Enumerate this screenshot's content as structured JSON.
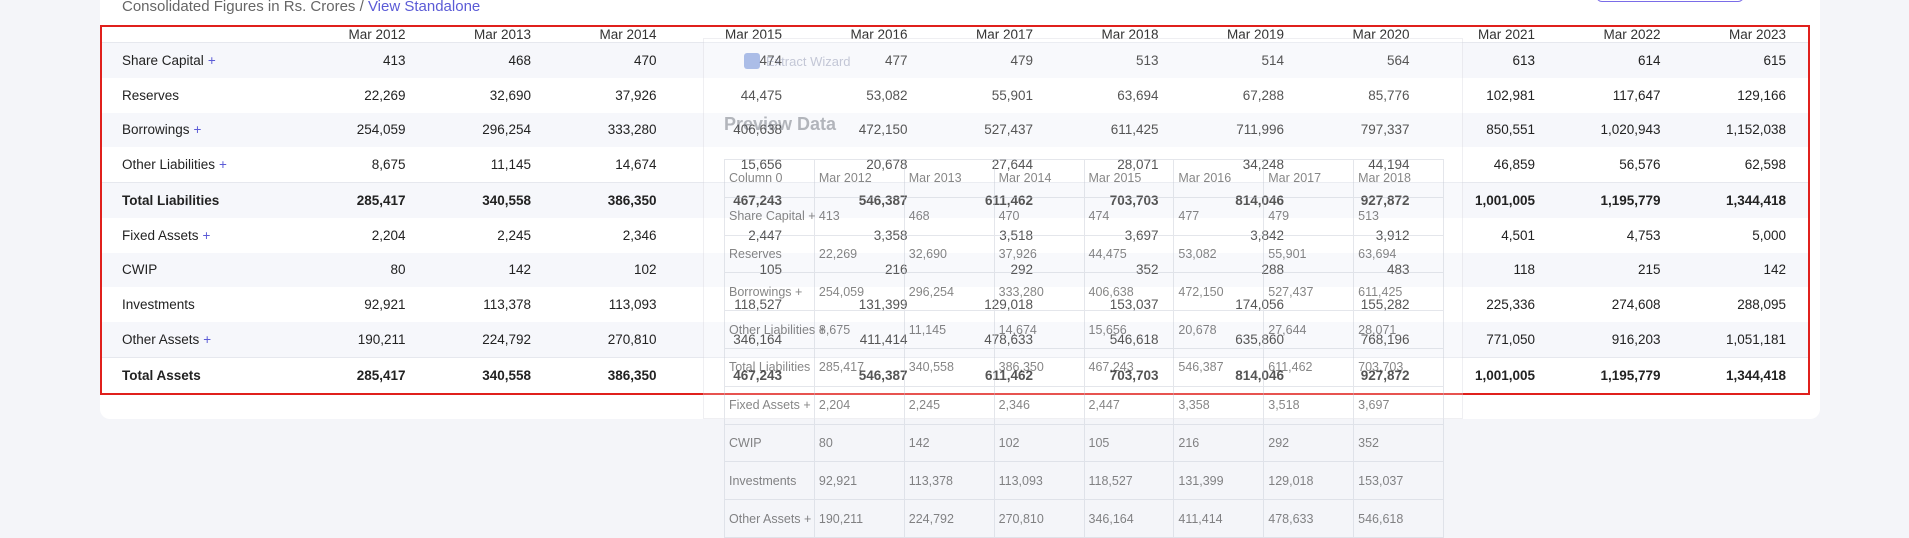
{
  "header": {
    "subtitle": "Consolidated Figures in Rs. Crores / ",
    "link": "View Standalone"
  },
  "table": {
    "columns": [
      "Mar 2012",
      "Mar 2013",
      "Mar 2014",
      "Mar 2015",
      "Mar 2016",
      "Mar 2017",
      "Mar 2018",
      "Mar 2019",
      "Mar 2020",
      "Mar 2021",
      "Mar 2022",
      "Mar 2023"
    ],
    "rows": [
      {
        "label": "Share Capital",
        "plus": "+",
        "values": [
          "413",
          "468",
          "470",
          "474",
          "477",
          "479",
          "513",
          "514",
          "564",
          "613",
          "614",
          "615"
        ]
      },
      {
        "label": "Reserves",
        "plus": "",
        "values": [
          "22,269",
          "32,690",
          "37,926",
          "44,475",
          "53,082",
          "55,901",
          "63,694",
          "67,288",
          "85,776",
          "102,981",
          "117,647",
          "129,166"
        ]
      },
      {
        "label": "Borrowings",
        "plus": "+",
        "values": [
          "254,059",
          "296,254",
          "333,280",
          "406,638",
          "472,150",
          "527,437",
          "611,425",
          "711,996",
          "797,337",
          "850,551",
          "1,020,943",
          "1,152,038"
        ]
      },
      {
        "label": "Other Liabilities",
        "plus": "+",
        "values": [
          "8,675",
          "11,145",
          "14,674",
          "15,656",
          "20,678",
          "27,644",
          "28,071",
          "34,248",
          "44,194",
          "46,859",
          "56,576",
          "62,598"
        ]
      },
      {
        "label": "Total Liabilities",
        "plus": "",
        "values": [
          "285,417",
          "340,558",
          "386,350",
          "467,243",
          "546,387",
          "611,462",
          "703,703",
          "814,046",
          "927,872",
          "1,001,005",
          "1,195,779",
          "1,344,418"
        ]
      },
      {
        "label": "Fixed Assets",
        "plus": "+",
        "values": [
          "2,204",
          "2,245",
          "2,346",
          "2,447",
          "3,358",
          "3,518",
          "3,697",
          "3,842",
          "3,912",
          "4,501",
          "4,753",
          "5,000"
        ]
      },
      {
        "label": "CWIP",
        "plus": "",
        "values": [
          "80",
          "142",
          "102",
          "105",
          "216",
          "292",
          "352",
          "288",
          "483",
          "118",
          "215",
          "142"
        ]
      },
      {
        "label": "Investments",
        "plus": "",
        "values": [
          "92,921",
          "113,378",
          "113,093",
          "118,527",
          "131,399",
          "129,018",
          "153,037",
          "174,056",
          "155,282",
          "225,336",
          "274,608",
          "288,095"
        ]
      },
      {
        "label": "Other Assets",
        "plus": "+",
        "values": [
          "190,211",
          "224,792",
          "270,810",
          "346,164",
          "411,414",
          "478,633",
          "546,618",
          "635,860",
          "768,196",
          "771,050",
          "916,203",
          "1,051,181"
        ]
      },
      {
        "label": "Total Assets",
        "plus": "",
        "values": [
          "285,417",
          "340,558",
          "386,350",
          "467,243",
          "546,387",
          "611,462",
          "703,703",
          "814,046",
          "927,872",
          "1,001,005",
          "1,195,779",
          "1,344,418"
        ]
      }
    ]
  },
  "overlay": {
    "title": "Extract Wizard",
    "heading": "Preview Data",
    "grid": [
      [
        "Column 0",
        "Mar 2012",
        "Mar 2013",
        "Mar 2014",
        "Mar 2015",
        "Mar 2016",
        "Mar 2017",
        "Mar 2018"
      ],
      [
        "Share Capital +",
        "413",
        "468",
        "470",
        "474",
        "477",
        "479",
        "513"
      ],
      [
        "Reserves",
        "22,269",
        "32,690",
        "37,926",
        "44,475",
        "53,082",
        "55,901",
        "63,694"
      ],
      [
        "Borrowings +",
        "254,059",
        "296,254",
        "333,280",
        "406,638",
        "472,150",
        "527,437",
        "611,425"
      ],
      [
        "Other Liabilities +",
        "8,675",
        "11,145",
        "14,674",
        "15,656",
        "20,678",
        "27,644",
        "28,071"
      ],
      [
        "Total Liabilities",
        "285,417",
        "340,558",
        "386,350",
        "467,243",
        "546,387",
        "611,462",
        "703,703"
      ],
      [
        "Fixed Assets +",
        "2,204",
        "2,245",
        "2,346",
        "2,447",
        "3,358",
        "3,518",
        "3,697"
      ],
      [
        "CWIP",
        "80",
        "142",
        "102",
        "105",
        "216",
        "292",
        "352"
      ],
      [
        "Investments",
        "92,921",
        "113,378",
        "113,093",
        "118,527",
        "131,399",
        "129,018",
        "153,037"
      ],
      [
        "Other Assets +",
        "190,211",
        "224,792",
        "270,810",
        "346,164",
        "411,414",
        "478,633",
        "546,618"
      ]
    ]
  }
}
